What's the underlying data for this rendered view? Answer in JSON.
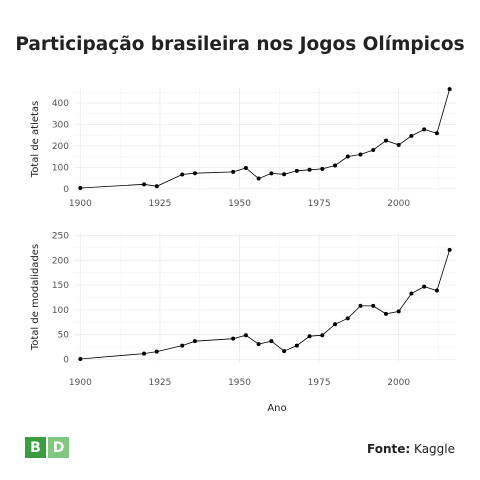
{
  "title": "Participação brasileira nos Jogos Olímpicos",
  "source": {
    "label": "Fonte:",
    "value": "Kaggle"
  },
  "logo": {
    "letters": [
      "B",
      "D"
    ],
    "colors": [
      "#3a9e3f",
      "#7fc97f"
    ]
  },
  "colors": {
    "line": "#000000",
    "grid": "#ebebeb"
  },
  "chart_data": [
    {
      "type": "line",
      "title": "",
      "xlabel": "",
      "ylabel": "Total de atletas",
      "xlim": [
        1898,
        2018
      ],
      "ylim": [
        -10,
        470
      ],
      "xticks": [
        1900,
        1925,
        1950,
        1975,
        2000
      ],
      "yticks": [
        0,
        100,
        200,
        300,
        400
      ],
      "grid": true,
      "x": [
        1900,
        1920,
        1924,
        1932,
        1936,
        1948,
        1952,
        1956,
        1960,
        1964,
        1968,
        1972,
        1976,
        1980,
        1984,
        1988,
        1992,
        1996,
        2000,
        2004,
        2008,
        2012,
        2016
      ],
      "values": [
        4,
        21,
        12,
        67,
        73,
        79,
        97,
        48,
        72,
        68,
        84,
        89,
        93,
        109,
        151,
        160,
        181,
        225,
        205,
        247,
        277,
        259,
        465
      ]
    },
    {
      "type": "line",
      "title": "",
      "xlabel": "Ano",
      "ylabel": "Total de modalidades",
      "xlim": [
        1898,
        2018
      ],
      "ylim": [
        -5,
        255
      ],
      "xticks": [
        1900,
        1925,
        1950,
        1975,
        2000
      ],
      "yticks": [
        0,
        50,
        100,
        150,
        200,
        250
      ],
      "grid": true,
      "x": [
        1900,
        1920,
        1924,
        1932,
        1936,
        1948,
        1952,
        1956,
        1960,
        1964,
        1968,
        1972,
        1976,
        1980,
        1984,
        1988,
        1992,
        1996,
        2000,
        2004,
        2008,
        2012,
        2016
      ],
      "values": [
        1,
        12,
        16,
        28,
        37,
        42,
        49,
        31,
        37,
        17,
        28,
        47,
        49,
        71,
        83,
        108,
        108,
        92,
        97,
        133,
        147,
        139,
        221
      ]
    }
  ]
}
